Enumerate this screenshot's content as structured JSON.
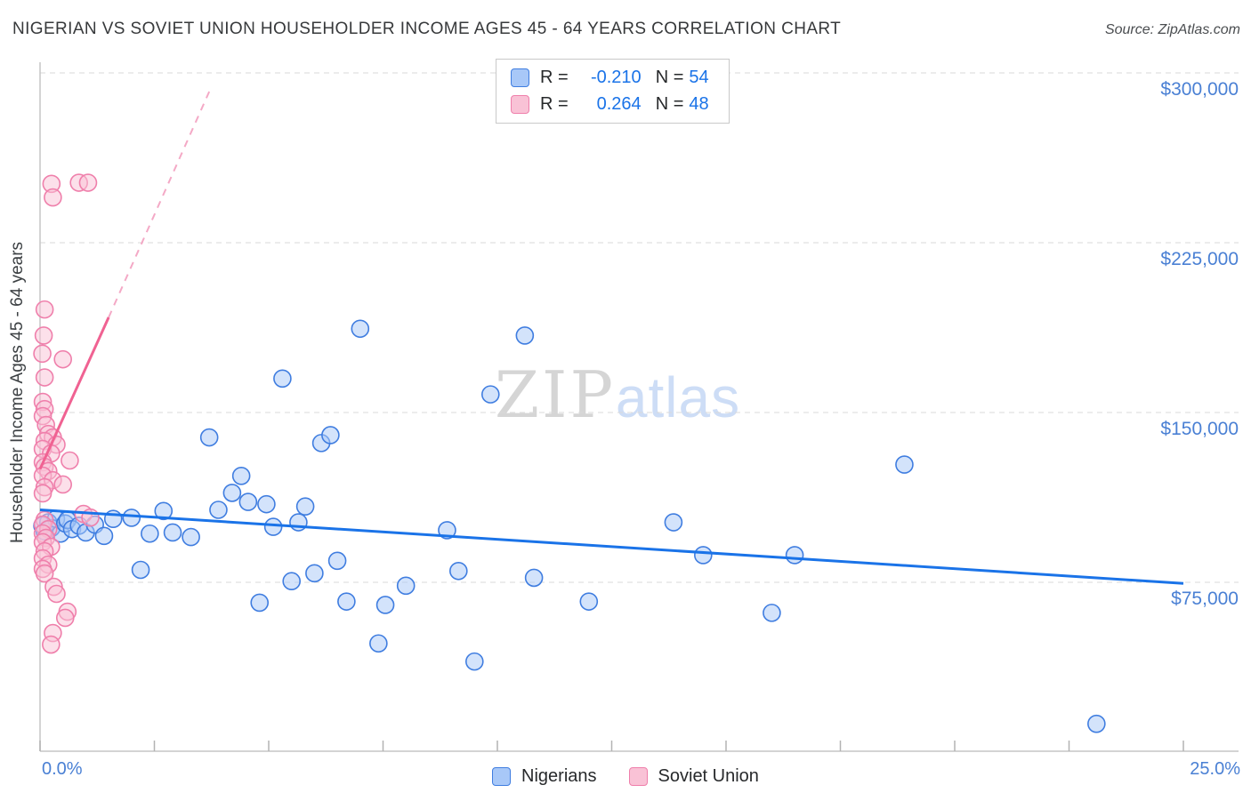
{
  "header": {
    "title": "NIGERIAN VS SOVIET UNION HOUSEHOLDER INCOME AGES 45 - 64 YEARS CORRELATION CHART",
    "source": "Source: ZipAtlas.com"
  },
  "watermark": {
    "zip": "ZIP",
    "atlas": "atlas"
  },
  "legend_box": {
    "rows": [
      {
        "r_label": "R = ",
        "r": "-0.210",
        "n_label": "N = ",
        "n": "54"
      },
      {
        "r_label": "R = ",
        "r": "0.264",
        "n_label": "N = ",
        "n": "48"
      }
    ]
  },
  "bottom_legend": {
    "items": [
      {
        "label": "Nigerians"
      },
      {
        "label": "Soviet Union"
      }
    ]
  },
  "chart_data": {
    "type": "scatter",
    "title": "Nigerian vs Soviet Union Householder Income Ages 45 - 64 years",
    "ylabel": "Householder Income Ages 45 - 64 years",
    "xlim": [
      0,
      26.2
    ],
    "ylim": [
      0,
      310000
    ],
    "grid": "horizontal-dashed",
    "x_ticks": [
      {
        "value": 0,
        "label": "0.0%"
      },
      {
        "value": 25,
        "label": "25.0%"
      }
    ],
    "x_minor_ticks": [
      0,
      2.5,
      5,
      7.5,
      10,
      12.5,
      15,
      17.5,
      20,
      22.5,
      25
    ],
    "y_gridlines": [
      {
        "value": 300000,
        "label": "$300,000"
      },
      {
        "value": 225000,
        "label": "$225,000"
      },
      {
        "value": 150000,
        "label": "$150,000"
      },
      {
        "value": 75000,
        "label": "$75,000"
      }
    ],
    "series": [
      {
        "name": "Nigerians",
        "fill": "#a8c8f8",
        "stroke": "#3f7de0",
        "trend_color": "#1a73e8",
        "r": -0.21,
        "n": 54,
        "trend": {
          "x1": 0,
          "y1": 107000,
          "x2": 25,
          "y2": 74500
        },
        "points": [
          [
            0.05,
            100000
          ],
          [
            0.1,
            97500
          ],
          [
            0.18,
            101500
          ],
          [
            0.25,
            99000
          ],
          [
            0.35,
            103000
          ],
          [
            0.45,
            96500
          ],
          [
            0.55,
            101000
          ],
          [
            0.6,
            102500
          ],
          [
            0.7,
            98500
          ],
          [
            0.85,
            100000
          ],
          [
            1.0,
            97000
          ],
          [
            1.2,
            100500
          ],
          [
            1.4,
            95500
          ],
          [
            1.6,
            103000
          ],
          [
            2.0,
            103500
          ],
          [
            2.2,
            80500
          ],
          [
            2.4,
            96500
          ],
          [
            2.7,
            106500
          ],
          [
            2.9,
            97000
          ],
          [
            3.3,
            95000
          ],
          [
            3.7,
            139000
          ],
          [
            3.9,
            107000
          ],
          [
            4.2,
            114500
          ],
          [
            4.4,
            122000
          ],
          [
            4.55,
            110500
          ],
          [
            4.8,
            66000
          ],
          [
            4.95,
            109500
          ],
          [
            5.1,
            99500
          ],
          [
            5.3,
            165000
          ],
          [
            5.5,
            75500
          ],
          [
            5.65,
            101500
          ],
          [
            5.8,
            108500
          ],
          [
            6.0,
            79000
          ],
          [
            6.15,
            136500
          ],
          [
            6.35,
            140000
          ],
          [
            6.5,
            84500
          ],
          [
            6.7,
            66500
          ],
          [
            7.0,
            187000
          ],
          [
            7.4,
            48000
          ],
          [
            7.55,
            65000
          ],
          [
            8.0,
            73500
          ],
          [
            8.9,
            98000
          ],
          [
            9.15,
            80000
          ],
          [
            9.5,
            40000
          ],
          [
            9.85,
            158000
          ],
          [
            10.6,
            184000
          ],
          [
            10.8,
            77000
          ],
          [
            12.0,
            66500
          ],
          [
            13.85,
            101500
          ],
          [
            14.5,
            87000
          ],
          [
            16.0,
            61500
          ],
          [
            16.5,
            87000
          ],
          [
            18.9,
            127000
          ],
          [
            23.1,
            12500
          ]
        ]
      },
      {
        "name": "Soviet Union",
        "fill": "#f9c2d6",
        "stroke": "#ef7fab",
        "trend_color": "#f06292",
        "trend_dash_color": "#f4a9c6",
        "r": 0.264,
        "n": 48,
        "trend": {
          "x1": 0,
          "y1": 125000,
          "x2": 1.5,
          "y2": 192000
        },
        "trend_dashed": {
          "x1": 1.5,
          "y1": 192000,
          "x2": 3.75,
          "y2": 294000
        },
        "points": [
          [
            0.25,
            251000
          ],
          [
            0.28,
            245000
          ],
          [
            0.85,
            251500
          ],
          [
            1.05,
            251500
          ],
          [
            0.1,
            195500
          ],
          [
            0.08,
            184000
          ],
          [
            0.05,
            176000
          ],
          [
            0.5,
            173500
          ],
          [
            0.1,
            165500
          ],
          [
            0.06,
            154700
          ],
          [
            0.1,
            151500
          ],
          [
            0.06,
            148400
          ],
          [
            0.13,
            144500
          ],
          [
            0.18,
            140500
          ],
          [
            0.28,
            139000
          ],
          [
            0.1,
            137400
          ],
          [
            0.36,
            135800
          ],
          [
            0.06,
            133900
          ],
          [
            0.24,
            131900
          ],
          [
            0.65,
            128800
          ],
          [
            0.06,
            128000
          ],
          [
            0.1,
            126000
          ],
          [
            0.18,
            124100
          ],
          [
            0.06,
            122100
          ],
          [
            0.28,
            120100
          ],
          [
            0.5,
            118200
          ],
          [
            0.1,
            117000
          ],
          [
            0.06,
            114300
          ],
          [
            0.95,
            105200
          ],
          [
            1.1,
            103600
          ],
          [
            0.1,
            102500
          ],
          [
            0.06,
            100500
          ],
          [
            0.18,
            98500
          ],
          [
            0.06,
            96600
          ],
          [
            0.13,
            94600
          ],
          [
            0.06,
            92700
          ],
          [
            0.24,
            90700
          ],
          [
            0.1,
            88700
          ],
          [
            0.06,
            85600
          ],
          [
            0.18,
            82800
          ],
          [
            0.06,
            80900
          ],
          [
            0.1,
            78900
          ],
          [
            0.3,
            73000
          ],
          [
            0.36,
            69900
          ],
          [
            0.6,
            62000
          ],
          [
            0.55,
            59300
          ],
          [
            0.28,
            52600
          ],
          [
            0.24,
            47500
          ]
        ]
      }
    ]
  }
}
